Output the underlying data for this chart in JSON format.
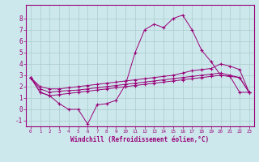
{
  "xlabel": "Windchill (Refroidissement éolien,°C)",
  "xlim": [
    -0.5,
    23.5
  ],
  "ylim": [
    -1.5,
    9.2
  ],
  "bg_color": "#cce8ec",
  "line_color": "#990077",
  "grid_color": "#aacccc",
  "hours": [
    0,
    1,
    2,
    3,
    4,
    5,
    6,
    7,
    8,
    9,
    10,
    11,
    12,
    13,
    14,
    15,
    16,
    17,
    18,
    19,
    20,
    21,
    22,
    23
  ],
  "s1_y": [
    2.8,
    1.5,
    1.2,
    0.5,
    0.0,
    0.0,
    -1.3,
    0.4,
    0.5,
    0.8,
    2.2,
    5.0,
    7.0,
    7.5,
    7.2,
    8.0,
    8.3,
    7.0,
    5.2,
    4.2,
    3.0,
    2.9,
    1.5,
    1.5
  ],
  "s2_y": [
    2.8,
    2.0,
    1.8,
    1.8,
    1.9,
    2.0,
    2.1,
    2.2,
    2.3,
    2.4,
    2.5,
    2.6,
    2.7,
    2.8,
    2.9,
    3.0,
    3.2,
    3.4,
    3.5,
    3.6,
    4.0,
    3.8,
    3.5,
    1.5
  ],
  "s3_y": [
    2.8,
    1.8,
    1.5,
    1.6,
    1.65,
    1.7,
    1.8,
    1.9,
    2.0,
    2.1,
    2.2,
    2.3,
    2.4,
    2.5,
    2.6,
    2.7,
    2.8,
    2.9,
    3.0,
    3.1,
    3.2,
    3.0,
    2.8,
    1.5
  ],
  "s4_y": [
    2.8,
    1.5,
    1.2,
    1.3,
    1.4,
    1.5,
    1.6,
    1.7,
    1.8,
    1.9,
    2.0,
    2.1,
    2.2,
    2.3,
    2.4,
    2.5,
    2.6,
    2.7,
    2.8,
    2.9,
    3.0,
    2.9,
    2.8,
    1.5
  ],
  "yticks": [
    -1,
    0,
    1,
    2,
    3,
    4,
    5,
    6,
    7,
    8
  ],
  "xticks": [
    0,
    1,
    2,
    3,
    4,
    5,
    6,
    7,
    8,
    9,
    10,
    11,
    12,
    13,
    14,
    15,
    16,
    17,
    18,
    19,
    20,
    21,
    22,
    23
  ]
}
